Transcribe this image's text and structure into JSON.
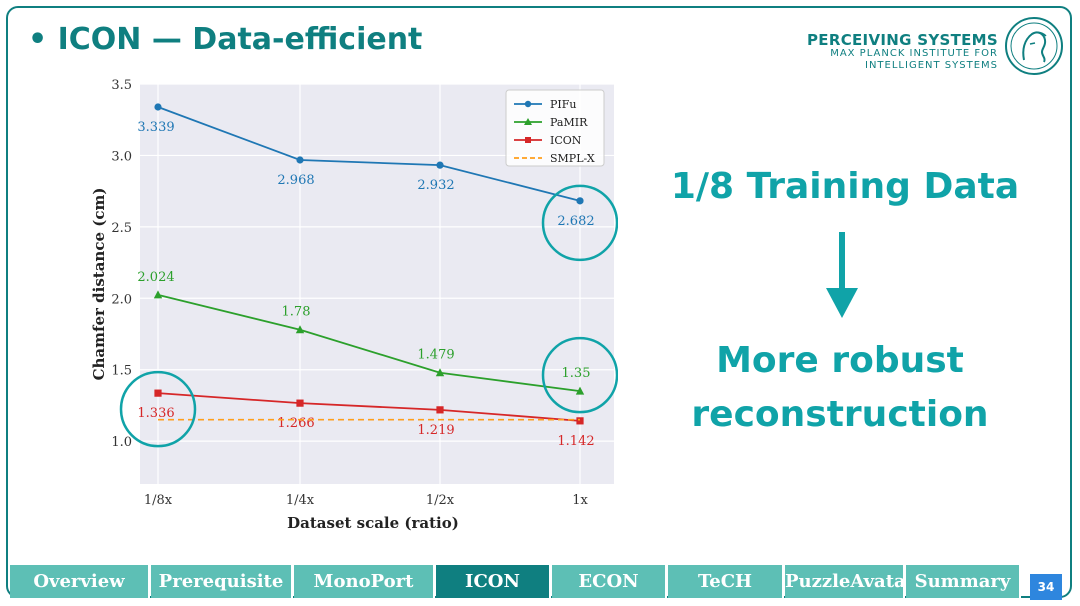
{
  "slide": {
    "title": "• ICON — Data-efficient",
    "logo": {
      "line1": "PERCEIVING SYSTEMS",
      "line2": "MAX PLANCK INSTITUTE FOR",
      "line3": "INTELLIGENT SYSTEMS"
    },
    "claim_top": "1/8 Training Data",
    "claim_bottom_1": "More robust",
    "claim_bottom_2": "reconstruction",
    "page_number": "34",
    "accent_color": "#0f7f80",
    "claim_color": "#10a3a8"
  },
  "nav": {
    "tabs": [
      {
        "label": "Overview",
        "active": false
      },
      {
        "label": "Prerequisite",
        "active": false
      },
      {
        "label": "MonoPort",
        "active": false
      },
      {
        "label": "ICON",
        "active": true
      },
      {
        "label": "ECON",
        "active": false
      },
      {
        "label": "TeCH",
        "active": false
      },
      {
        "label": "PuzzleAvatar",
        "active": false
      },
      {
        "label": "Summary",
        "active": false
      }
    ]
  },
  "chart_data": {
    "type": "line",
    "title": "",
    "xlabel": "Dataset scale (ratio)",
    "ylabel": "Chamfer distance (cm)",
    "categories": [
      "1/8x",
      "1/4x",
      "1/2x",
      "1x"
    ],
    "ylim": [
      0.7,
      3.5
    ],
    "yticks": [
      "1.0",
      "1.5",
      "2.0",
      "2.5",
      "3.0",
      "3.5"
    ],
    "ytick_values": [
      1.0,
      1.5,
      2.0,
      2.5,
      3.0,
      3.5
    ],
    "grid": true,
    "legend_position": "top-right",
    "series": [
      {
        "name": "PIFu",
        "color": "#1f77b4",
        "marker": "circle",
        "values": [
          3.339,
          2.968,
          2.932,
          2.682
        ],
        "labels": [
          "3.339",
          "2.968",
          "2.932",
          "2.682"
        ],
        "label_pos": "below"
      },
      {
        "name": "PaMIR",
        "color": "#2ca02c",
        "marker": "triangle",
        "values": [
          2.024,
          1.78,
          1.479,
          1.35
        ],
        "labels": [
          "2.024",
          "1.78",
          "1.479",
          "1.35"
        ],
        "label_pos": "above"
      },
      {
        "name": "ICON",
        "color": "#d62728",
        "marker": "square",
        "values": [
          1.336,
          1.266,
          1.219,
          1.142
        ],
        "labels": [
          "1.336",
          "1.266",
          "1.219",
          "1.142"
        ],
        "label_pos": "below"
      },
      {
        "name": "SMPL-X",
        "color": "#ff9f1c",
        "style": "dashed",
        "values": [
          1.15,
          1.15,
          1.15,
          1.15
        ],
        "labels": []
      }
    ],
    "highlights": [
      {
        "series": "PIFu",
        "index": 3
      },
      {
        "series": "PaMIR",
        "index": 3
      },
      {
        "series": "ICON",
        "index": 0
      }
    ],
    "highlight_color": "#10a3a8"
  }
}
